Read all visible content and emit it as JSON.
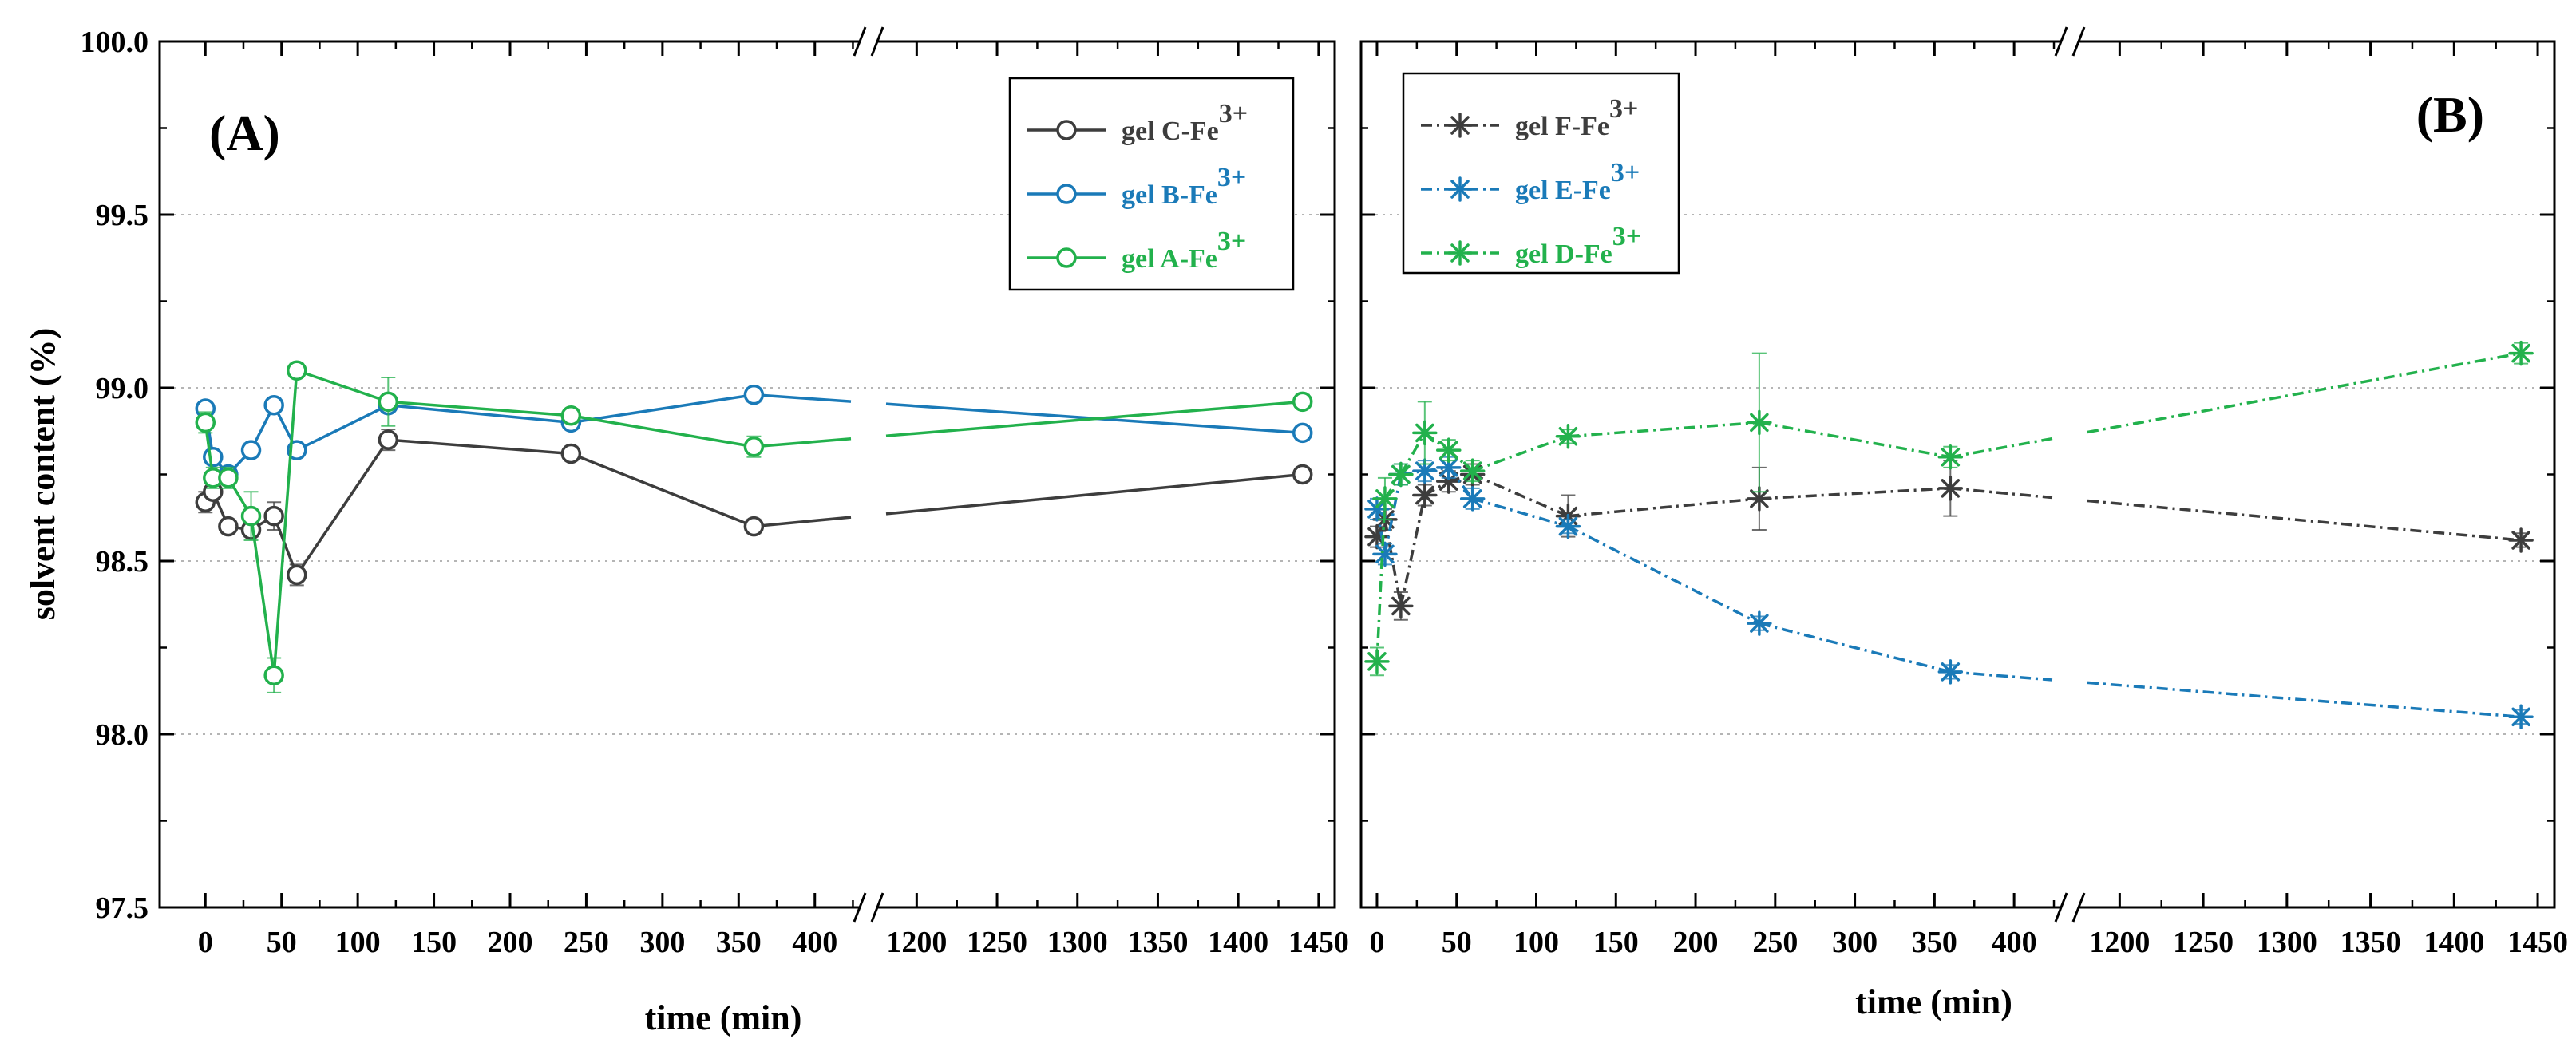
{
  "chart_data": [
    {
      "type": "line",
      "panel_label": "(A)",
      "xlabel": "time (min)",
      "ylabel": "solvent content (%)",
      "ylim": [
        97.5,
        100.0
      ],
      "yticks": [
        "97.5",
        "98.0",
        "98.5",
        "99.0",
        "99.5",
        "100.0"
      ],
      "xticks": [
        "0",
        "50",
        "100",
        "150",
        "200",
        "250",
        "300",
        "350",
        "400",
        "1200",
        "1250",
        "1300",
        "1350",
        "1400",
        "1450"
      ],
      "axis_break": {
        "lower_segment": [
          -30,
          430
        ],
        "upper_segment": [
          1175,
          1460
        ]
      },
      "grid": "horizontal dotted",
      "legend_position": "top-right",
      "marker": "open-circle",
      "series": [
        {
          "name": "gel C-Fe",
          "superscript": "3+",
          "color": "#3d3d3d",
          "line": "solid",
          "x": [
            0,
            5,
            15,
            30,
            45,
            60,
            120,
            240,
            360,
            1440
          ],
          "y": [
            98.67,
            98.7,
            98.6,
            98.59,
            98.63,
            98.46,
            98.85,
            98.81,
            98.6,
            98.75
          ],
          "err": [
            0.03,
            0.02,
            0.02,
            0.02,
            0.04,
            0.03,
            0.03,
            0.02,
            0.02,
            0.02
          ]
        },
        {
          "name": "gel B-Fe",
          "superscript": "3+",
          "color": "#1a7ab8",
          "line": "solid",
          "x": [
            0,
            5,
            15,
            30,
            45,
            60,
            120,
            240,
            360,
            1440
          ],
          "y": [
            98.94,
            98.8,
            98.75,
            98.82,
            98.95,
            98.82,
            98.95,
            98.9,
            98.98,
            98.87
          ],
          "err": [
            0.02,
            0.02,
            0.02,
            0.02,
            0.02,
            0.02,
            0.02,
            0.02,
            0.02,
            0.02
          ]
        },
        {
          "name": "gel A-Fe",
          "superscript": "3+",
          "color": "#22b14c",
          "line": "solid",
          "x": [
            0,
            5,
            15,
            30,
            45,
            60,
            120,
            240,
            360,
            1440
          ],
          "y": [
            98.9,
            98.74,
            98.74,
            98.63,
            98.17,
            99.05,
            98.96,
            98.92,
            98.83,
            98.96
          ],
          "err": [
            0.03,
            0.03,
            0.03,
            0.07,
            0.05,
            0.02,
            0.07,
            0.02,
            0.03,
            0.02
          ]
        }
      ]
    },
    {
      "type": "line",
      "panel_label": "(B)",
      "xlabel": "time (min)",
      "ylabel": "",
      "ylim": [
        97.5,
        100.0
      ],
      "xticks": [
        "0",
        "50",
        "100",
        "150",
        "200",
        "250",
        "300",
        "350",
        "400",
        "1200",
        "1250",
        "1300",
        "1350",
        "1400",
        "1450"
      ],
      "axis_break": {
        "lower_segment": [
          -10,
          430
        ],
        "upper_segment": [
          1175,
          1460
        ]
      },
      "grid": "horizontal dotted",
      "legend_position": "top-left",
      "marker": "asterisk",
      "series": [
        {
          "name": "gel F-Fe",
          "superscript": "3+",
          "color": "#3d3d3d",
          "line": "dash-dot",
          "x": [
            0,
            5,
            15,
            30,
            45,
            60,
            120,
            240,
            360,
            1440
          ],
          "y": [
            98.57,
            98.62,
            98.37,
            98.69,
            98.73,
            98.75,
            98.63,
            98.68,
            98.71,
            98.56
          ],
          "err": [
            0.03,
            0.03,
            0.04,
            0.03,
            0.03,
            0.03,
            0.06,
            0.09,
            0.08,
            0.02
          ]
        },
        {
          "name": "gel E-Fe",
          "superscript": "3+",
          "color": "#1a7ab8",
          "line": "dash-dot",
          "x": [
            0,
            5,
            15,
            30,
            45,
            60,
            120,
            240,
            360,
            1440
          ],
          "y": [
            98.65,
            98.52,
            98.75,
            98.76,
            98.77,
            98.68,
            98.6,
            98.32,
            98.18,
            98.05
          ],
          "err": [
            0.03,
            0.03,
            0.03,
            0.03,
            0.03,
            0.03,
            0.02,
            0.02,
            0.02,
            0.02
          ]
        },
        {
          "name": "gel D-Fe",
          "superscript": "3+",
          "color": "#22b14c",
          "line": "dash-dot",
          "x": [
            0,
            5,
            15,
            30,
            45,
            60,
            120,
            240,
            360,
            1440
          ],
          "y": [
            98.21,
            98.68,
            98.75,
            98.87,
            98.82,
            98.76,
            98.86,
            98.9,
            98.8,
            99.1
          ],
          "err": [
            0.04,
            0.06,
            0.03,
            0.09,
            0.03,
            0.03,
            0.02,
            0.2,
            0.03,
            0.03
          ]
        }
      ]
    }
  ]
}
